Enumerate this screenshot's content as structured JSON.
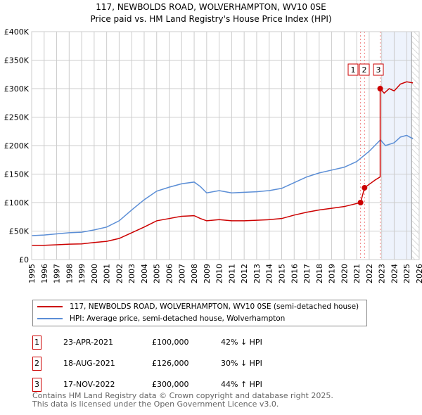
{
  "title": "117, NEWBOLDS ROAD, WOLVERHAMPTON, WV10 0SE",
  "subtitle": "Price paid vs. HM Land Registry's House Price Index (HPI)",
  "chart_data": {
    "type": "line",
    "xlim": [
      1995,
      2026
    ],
    "ylim": [
      0,
      400000
    ],
    "yticks": [
      0,
      50000,
      100000,
      150000,
      200000,
      250000,
      300000,
      350000,
      400000
    ],
    "ytick_labels": [
      "£0",
      "£50K",
      "£100K",
      "£150K",
      "£200K",
      "£250K",
      "£300K",
      "£350K",
      "£400K"
    ],
    "xticks": [
      1995,
      1996,
      1997,
      1998,
      1999,
      2000,
      2001,
      2002,
      2003,
      2004,
      2005,
      2006,
      2007,
      2008,
      2009,
      2010,
      2011,
      2012,
      2013,
      2014,
      2015,
      2016,
      2017,
      2018,
      2019,
      2020,
      2021,
      2022,
      2023,
      2024,
      2025,
      2026
    ],
    "shaded_from": 2023.0,
    "hatched_from": 2025.4,
    "series": [
      {
        "name": "117, NEWBOLDS ROAD, WOLVERHAMPTON, WV10 0SE (semi-detached house)",
        "color": "#cc0000",
        "x": [
          1995,
          1996,
          1997,
          1998,
          1999,
          2000,
          2001,
          2002,
          2003,
          2004,
          2005,
          2006,
          2007,
          2008,
          2008.5,
          2009,
          2010,
          2011,
          2012,
          2013,
          2014,
          2015,
          2016,
          2017,
          2018,
          2019,
          2020,
          2021.31,
          2021.31,
          2021.63,
          2022,
          2022.5,
          2022.88,
          2022.88,
          2023.2,
          2023.6,
          2024,
          2024.5,
          2025,
          2025.5
        ],
        "y": [
          25000,
          25000,
          26000,
          27000,
          27500,
          30000,
          32000,
          37000,
          47000,
          57000,
          68000,
          72000,
          76000,
          77000,
          72000,
          68000,
          70000,
          68000,
          68000,
          69000,
          70000,
          72000,
          78000,
          83000,
          87000,
          90000,
          93000,
          100000,
          100000,
          126000,
          132000,
          140000,
          145000,
          300000,
          292000,
          300000,
          296000,
          308000,
          312000,
          310000
        ]
      },
      {
        "name": "HPI: Average price, semi-detached house, Wolverhampton",
        "color": "#5b8ed6",
        "x": [
          1995,
          1996,
          1997,
          1998,
          1999,
          2000,
          2001,
          2002,
          2003,
          2004,
          2005,
          2006,
          2007,
          2008,
          2008.5,
          2009,
          2010,
          2011,
          2012,
          2013,
          2014,
          2015,
          2016,
          2017,
          2018,
          2019,
          2020,
          2021,
          2022,
          2022.9,
          2023.3,
          2024,
          2024.5,
          2025,
          2025.5
        ],
        "y": [
          42000,
          43000,
          45000,
          47000,
          48000,
          52000,
          57000,
          68000,
          87000,
          105000,
          120000,
          127000,
          133000,
          136000,
          128000,
          117000,
          121000,
          117000,
          118000,
          119000,
          121000,
          125000,
          135000,
          145000,
          152000,
          157000,
          162000,
          172000,
          190000,
          210000,
          200000,
          205000,
          215000,
          218000,
          212000
        ]
      }
    ],
    "sales": [
      {
        "label": "1",
        "x": 2021.31,
        "y": 100000,
        "date": "23-APR-2021",
        "price": "£100,000",
        "hpi": "42% ↓ HPI"
      },
      {
        "label": "2",
        "x": 2021.63,
        "y": 126000,
        "date": "18-AUG-2021",
        "price": "£126,000",
        "hpi": "30% ↓ HPI"
      },
      {
        "label": "3",
        "x": 2022.88,
        "y": 300000,
        "date": "17-NOV-2022",
        "price": "£300,000",
        "hpi": "44% ↑ HPI"
      }
    ]
  },
  "legend": {
    "red": "117, NEWBOLDS ROAD, WOLVERHAMPTON, WV10 0SE (semi-detached house)",
    "blue": "HPI: Average price, semi-detached house, Wolverhampton"
  },
  "footer": {
    "line1": "Contains HM Land Registry data © Crown copyright and database right 2025.",
    "line2": "This data is licensed under the Open Government Licence v3.0."
  }
}
